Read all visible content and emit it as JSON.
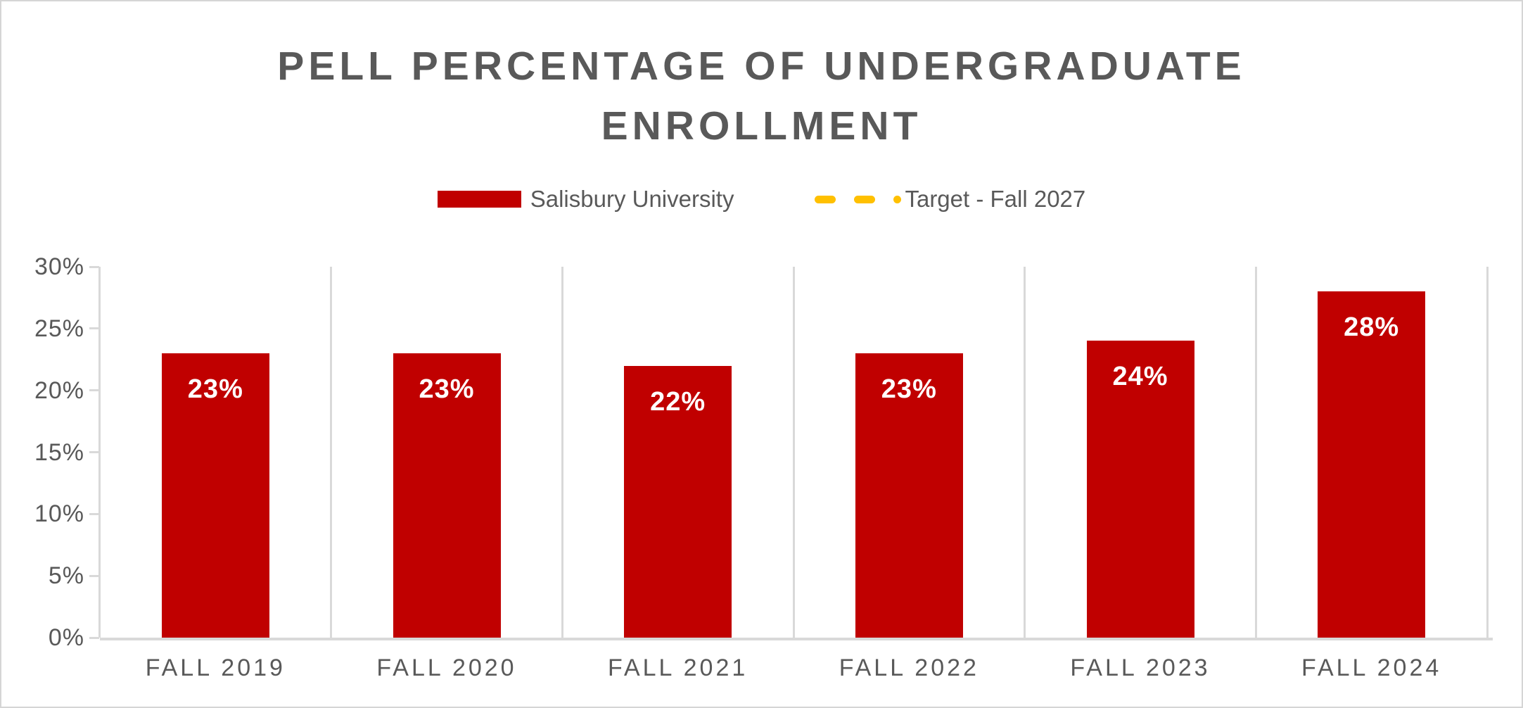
{
  "chart_data": {
    "type": "bar",
    "title": "PELL PERCENTAGE OF UNDERGRADUATE ENROLLMENT",
    "categories": [
      "FALL 2019",
      "FALL 2020",
      "FALL 2021",
      "FALL 2022",
      "FALL 2023",
      "FALL 2024"
    ],
    "series": [
      {
        "name": "Salisbury University",
        "type": "bar",
        "color": "#C00000",
        "values": [
          23,
          23,
          22,
          23,
          24,
          28
        ],
        "data_labels": [
          "23%",
          "23%",
          "22%",
          "23%",
          "24%",
          "28%"
        ]
      },
      {
        "name": "Target - Fall 2027",
        "type": "dashed-line",
        "color": "#FFC000",
        "values": []
      }
    ],
    "xlabel": "",
    "ylabel": "",
    "ylim": [
      0,
      30
    ],
    "ytick_step": 5,
    "ytick_labels": [
      "0%",
      "5%",
      "10%",
      "15%",
      "20%",
      "25%",
      "30%"
    ],
    "grid": "vertical-only",
    "legend_position": "top",
    "colors": {
      "bar": "#C00000",
      "target": "#FFC000",
      "text": "#595959",
      "grid": "#D9D9D9",
      "data_label": "#FFFFFF",
      "background": "#FFFFFF"
    }
  }
}
